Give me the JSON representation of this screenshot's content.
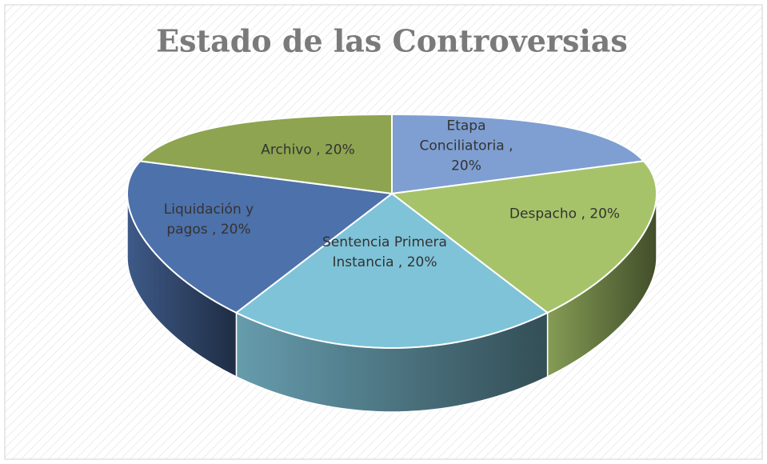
{
  "chart_data": {
    "type": "pie3d",
    "title": "Estado de las Controversias",
    "values": [
      20,
      20,
      20,
      20,
      20
    ],
    "value_labels": [
      "Etapa Conciliatoria , 20%",
      "Despacho , 20%",
      "Sentencia Primera Instancia , 20%",
      "Liquidación y pagos , 20%",
      "Archivo , 20%"
    ],
    "colors": [
      "#7f9fd2",
      "#a6c36a",
      "#7fc3d8",
      "#4d71aa",
      "#8ea450"
    ]
  }
}
